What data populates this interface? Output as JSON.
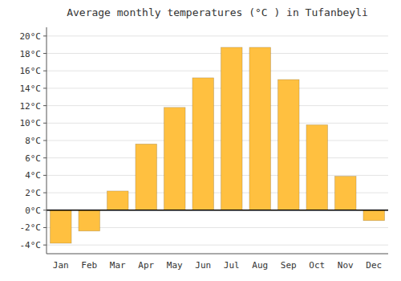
{
  "chart_data": {
    "type": "bar",
    "title": "Average monthly temperatures (°C ) in Tufanbeyli",
    "categories": [
      "Jan",
      "Feb",
      "Mar",
      "Apr",
      "May",
      "Jun",
      "Jul",
      "Aug",
      "Sep",
      "Oct",
      "Nov",
      "Dec"
    ],
    "values": [
      -3.8,
      -2.4,
      2.2,
      7.6,
      11.8,
      15.2,
      18.7,
      18.7,
      15.0,
      9.8,
      3.9,
      -1.2
    ],
    "color": "#FFC040",
    "ylim": [
      -5,
      21
    ],
    "yticks": [
      {
        "value": -4,
        "label": "-4°C"
      },
      {
        "value": -2,
        "label": "-2°C"
      },
      {
        "value": 0,
        "label": "0°C"
      },
      {
        "value": 2,
        "label": "2°C"
      },
      {
        "value": 4,
        "label": "4°C"
      },
      {
        "value": 6,
        "label": "6°C"
      },
      {
        "value": 8,
        "label": "8°C"
      },
      {
        "value": 10,
        "label": "10°C"
      },
      {
        "value": 12,
        "label": "12°C"
      },
      {
        "value": 14,
        "label": "14°C"
      },
      {
        "value": 16,
        "label": "16°C"
      },
      {
        "value": 18,
        "label": "18°C"
      },
      {
        "value": 20,
        "label": "20°C"
      }
    ],
    "grid": true
  }
}
